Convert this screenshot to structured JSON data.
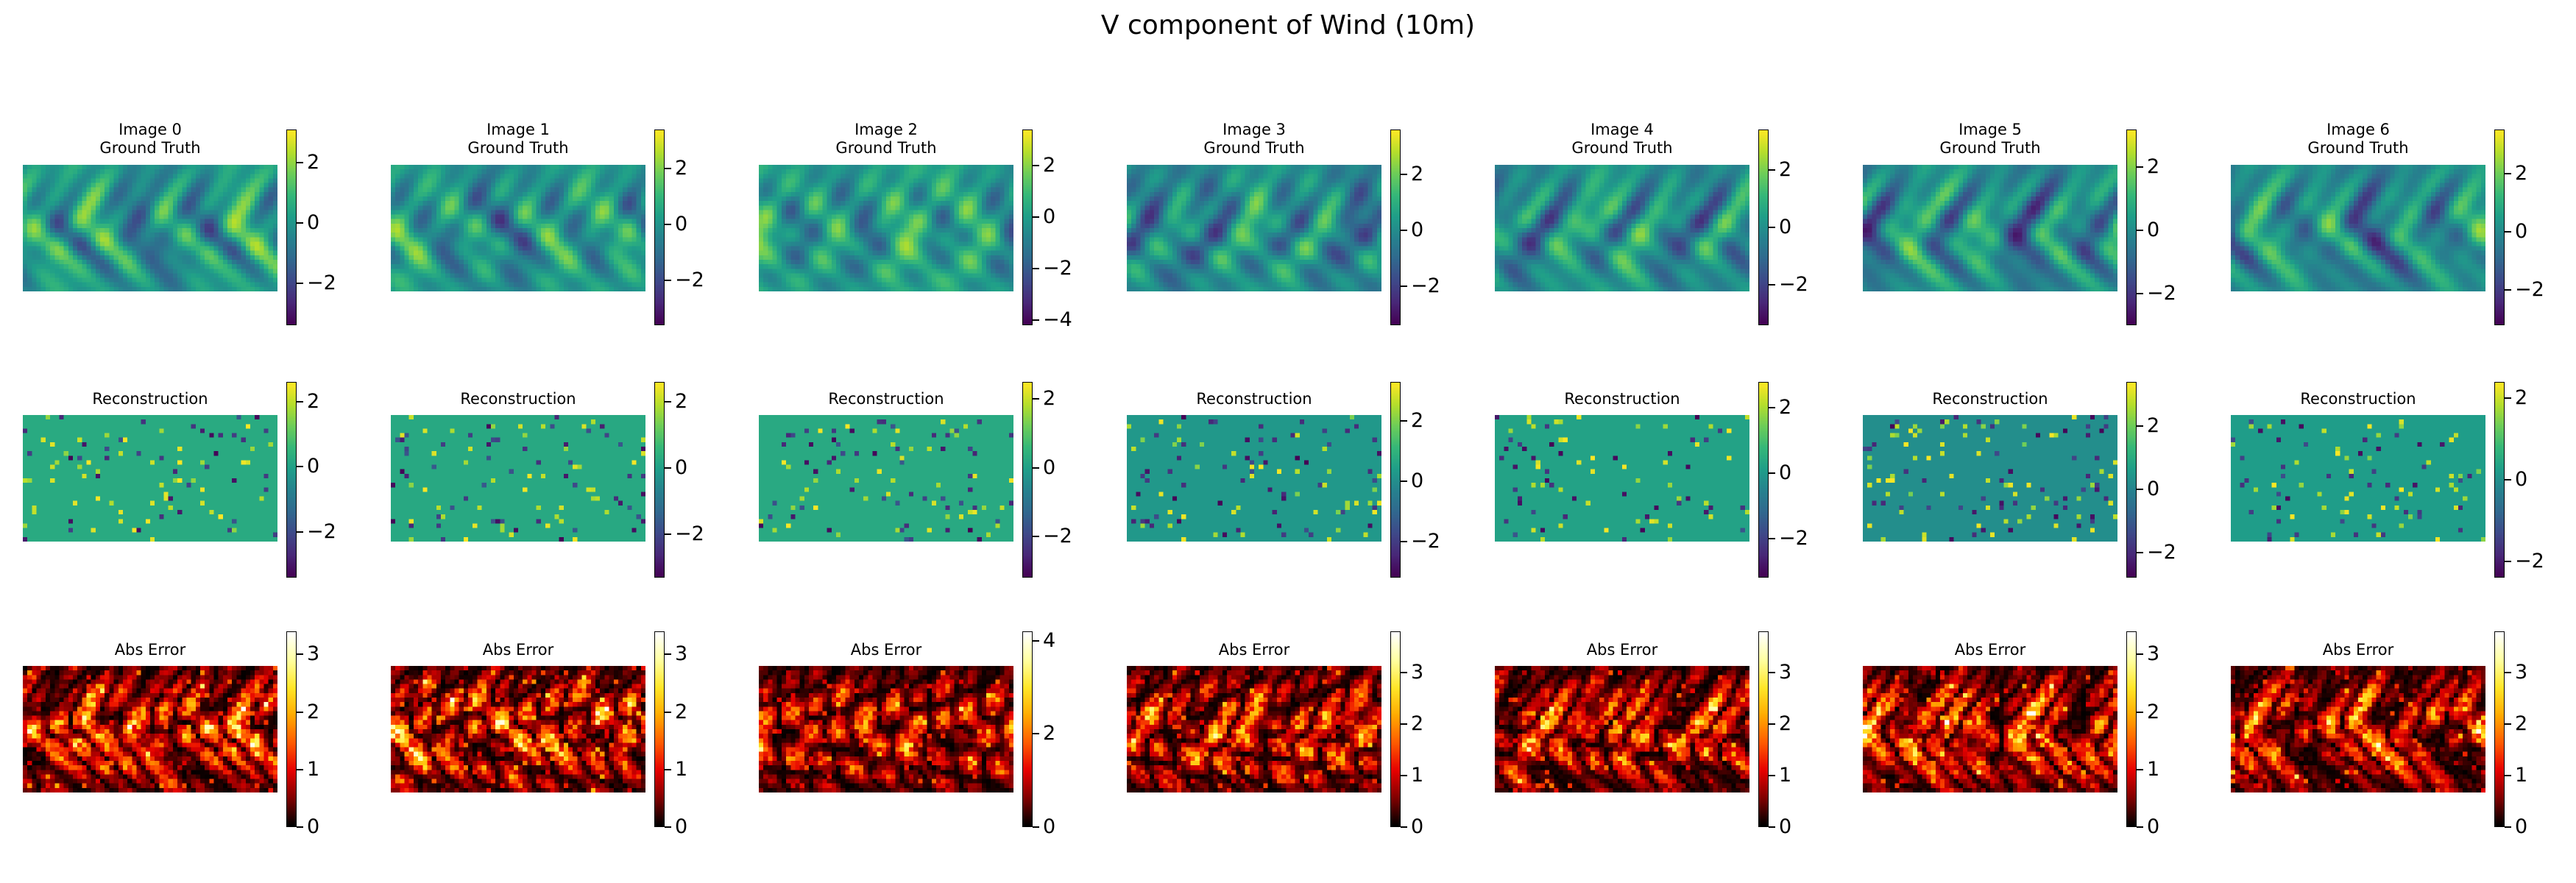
{
  "title": "V component of Wind (10m)",
  "row_titles": [
    "Ground Truth",
    "Reconstruction",
    "Abs Error"
  ],
  "colormaps": {
    "Ground Truth": "viridis",
    "Reconstruction": "viridis",
    "Abs Error": "hot"
  },
  "chart_data": {
    "type": "heatmap",
    "grid": "off",
    "panels": [
      {
        "image": "Image 0",
        "row": "Ground Truth",
        "vmin": -3.4,
        "vmax": 3.1,
        "ticks": [
          -2,
          0,
          2
        ]
      },
      {
        "image": "Image 1",
        "row": "Ground Truth",
        "vmin": -3.6,
        "vmax": 3.4,
        "ticks": [
          -2,
          0,
          2
        ]
      },
      {
        "image": "Image 2",
        "row": "Ground Truth",
        "vmin": -4.2,
        "vmax": 3.4,
        "ticks": [
          -4,
          -2,
          0,
          2
        ]
      },
      {
        "image": "Image 3",
        "row": "Ground Truth",
        "vmin": -3.4,
        "vmax": 3.6,
        "ticks": [
          -2,
          0,
          2
        ]
      },
      {
        "image": "Image 4",
        "row": "Ground Truth",
        "vmin": -3.4,
        "vmax": 3.4,
        "ticks": [
          -2,
          0,
          2
        ]
      },
      {
        "image": "Image 5",
        "row": "Ground Truth",
        "vmin": -3.0,
        "vmax": 3.2,
        "ticks": [
          -2,
          0,
          2
        ]
      },
      {
        "image": "Image 6",
        "row": "Ground Truth",
        "vmin": -3.2,
        "vmax": 3.5,
        "ticks": [
          -2,
          0,
          2
        ]
      },
      {
        "image": "Image 0",
        "row": "Reconstruction",
        "vmin": -3.4,
        "vmax": 2.6,
        "ticks": [
          -2,
          0,
          2
        ]
      },
      {
        "image": "Image 1",
        "row": "Reconstruction",
        "vmin": -3.3,
        "vmax": 2.6,
        "ticks": [
          -2,
          0,
          2
        ]
      },
      {
        "image": "Image 2",
        "row": "Reconstruction",
        "vmin": -3.2,
        "vmax": 2.5,
        "ticks": [
          -2,
          0,
          2
        ]
      },
      {
        "image": "Image 3",
        "row": "Reconstruction",
        "vmin": -3.2,
        "vmax": 3.3,
        "ticks": [
          -2,
          0,
          2
        ]
      },
      {
        "image": "Image 4",
        "row": "Reconstruction",
        "vmin": -3.2,
        "vmax": 2.8,
        "ticks": [
          -2,
          0,
          2
        ]
      },
      {
        "image": "Image 5",
        "row": "Reconstruction",
        "vmin": -2.8,
        "vmax": 3.4,
        "ticks": [
          -2,
          0,
          2
        ]
      },
      {
        "image": "Image 6",
        "row": "Reconstruction",
        "vmin": -2.4,
        "vmax": 2.4,
        "ticks": [
          -2,
          0,
          2
        ]
      },
      {
        "image": "Image 0",
        "row": "Abs Error",
        "vmin": 0,
        "vmax": 3.4,
        "ticks": [
          0,
          1,
          2,
          3
        ]
      },
      {
        "image": "Image 1",
        "row": "Abs Error",
        "vmin": 0,
        "vmax": 3.4,
        "ticks": [
          0,
          1,
          2,
          3
        ]
      },
      {
        "image": "Image 2",
        "row": "Abs Error",
        "vmin": 0,
        "vmax": 4.2,
        "ticks": [
          0,
          2,
          4
        ]
      },
      {
        "image": "Image 3",
        "row": "Abs Error",
        "vmin": 0,
        "vmax": 3.8,
        "ticks": [
          0,
          1,
          2,
          3
        ]
      },
      {
        "image": "Image 4",
        "row": "Abs Error",
        "vmin": 0,
        "vmax": 3.8,
        "ticks": [
          0,
          1,
          2,
          3
        ]
      },
      {
        "image": "Image 5",
        "row": "Abs Error",
        "vmin": 0,
        "vmax": 3.4,
        "ticks": [
          0,
          1,
          2,
          3
        ]
      },
      {
        "image": "Image 6",
        "row": "Abs Error",
        "vmin": 0,
        "vmax": 3.8,
        "ticks": [
          0,
          1,
          2,
          3
        ]
      }
    ]
  }
}
